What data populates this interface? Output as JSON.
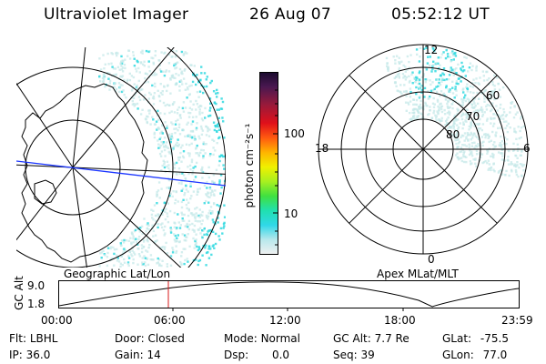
{
  "header": {
    "instrument": "Ultraviolet Imager",
    "date": "26 Aug 07",
    "time": "05:52:12 UT"
  },
  "geo_panel": {
    "label": "Geographic Lat/Lon"
  },
  "apex_panel": {
    "label": "Apex MLat/MLT",
    "mlt_labels": {
      "top": "12",
      "left": "18",
      "right": "6",
      "bottom": "0"
    },
    "mlat_labels": [
      "60",
      "70",
      "80"
    ]
  },
  "colorbar": {
    "unit_label": "photon cm⁻²s⁻¹",
    "tick_labels": [
      "100",
      "10"
    ]
  },
  "altitude_plot": {
    "ylabel": "GC Alt",
    "ytick_labels": [
      "9.0",
      "1.8"
    ],
    "xtick_labels": [
      "00:00",
      "06:00",
      "12:00",
      "18:00",
      "23:59"
    ]
  },
  "status": {
    "filter": {
      "label": "Flt:",
      "value": "LBHL"
    },
    "door": {
      "label": "Door:",
      "value": "Closed"
    },
    "mode": {
      "label": "Mode:",
      "value": "Normal"
    },
    "gc_alt": {
      "label": "GC Alt:",
      "value": "7.7 Re"
    },
    "glat": {
      "label": "GLat:",
      "value": "-75.5"
    },
    "ip": {
      "label": "IP:",
      "value": "36.0"
    },
    "gain": {
      "label": "Gain:",
      "value": "14"
    },
    "dsp": {
      "label": "Dsp:",
      "value": "0.0"
    },
    "seq": {
      "label": "Seq:",
      "value": "39"
    },
    "glon": {
      "label": "GLon:",
      "value": "77.0"
    }
  },
  "colors": {
    "aurora_light": "#c6e8e8",
    "aurora_bright": "#33d9e0",
    "cursor_line": "#d81818",
    "track_line": "#1a35ff"
  }
}
